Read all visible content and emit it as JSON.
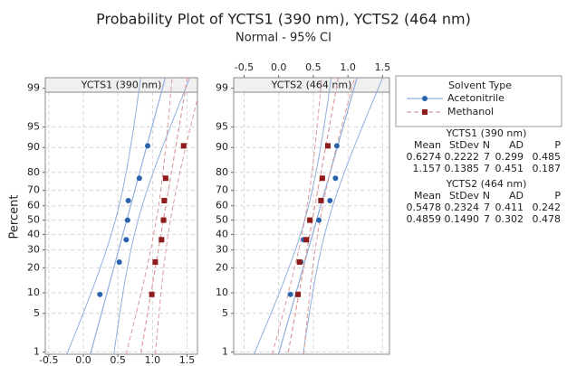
{
  "figure": {
    "title": "Probability Plot of YCTS1 (390 nm), YCTS2 (464 nm)",
    "subtitle": "Normal - 95% CI",
    "y_label": "Percent"
  },
  "legend": {
    "title": "Solvent Type",
    "position": "right"
  },
  "chart_data": [
    {
      "type": "probability",
      "title": "YCTS1 (390 nm)",
      "yscale": "normal",
      "grid": true,
      "xaxis_position": "bottom",
      "xlim": [
        -0.55,
        1.65
      ],
      "xticks": [
        -0.5,
        {
          "value": 0,
          "label": "0.0"
        },
        0.5,
        {
          "value": 1,
          "label": "1.0"
        },
        1.5
      ],
      "ylim": [
        0.9,
        99.4
      ],
      "yticks": [
        1,
        5,
        10,
        20,
        30,
        40,
        50,
        60,
        70,
        80,
        90,
        95,
        99
      ],
      "series": [
        {
          "name": "Acetonitrile",
          "color": "#2a62ad",
          "line_color": "#8fb0dc",
          "line_style": "solid",
          "x": [
            0.24,
            0.52,
            0.62,
            0.64,
            0.65,
            0.81,
            0.93
          ],
          "y": [
            9.5,
            23,
            36.5,
            50,
            63.5,
            77,
            90.5
          ]
        },
        {
          "name": "Methanol",
          "color": "#8e1c1c",
          "line_color": "#dc9a9a",
          "line_style": "dashed",
          "x": [
            0.99,
            1.04,
            1.13,
            1.16,
            1.17,
            1.19,
            1.45
          ],
          "y": [
            9.5,
            23,
            36.5,
            50,
            63.5,
            77,
            90.5
          ]
        }
      ]
    },
    {
      "type": "probability",
      "title": "YCTS2 (464 nm)",
      "yscale": "normal",
      "grid": true,
      "xaxis_position": "top",
      "xlim": [
        -0.65,
        1.6
      ],
      "xticks": [
        -0.5,
        {
          "value": 0,
          "label": "0.0"
        },
        0.5,
        {
          "value": 1,
          "label": "1.0"
        },
        1.5
      ],
      "ylim": [
        0.9,
        99.4
      ],
      "yticks": [
        1,
        5,
        10,
        20,
        30,
        40,
        50,
        60,
        70,
        80,
        90,
        95,
        99
      ],
      "series": [
        {
          "name": "Acetonitrile",
          "color": "#2a62ad",
          "line_color": "#8fb0dc",
          "line_style": "solid",
          "x": [
            0.17,
            0.32,
            0.36,
            0.58,
            0.74,
            0.82,
            0.84
          ],
          "y": [
            9.5,
            23,
            36.5,
            50,
            63.5,
            77,
            90.5
          ]
        },
        {
          "name": "Methanol",
          "color": "#8e1c1c",
          "line_color": "#dc9a9a",
          "line_style": "dashed",
          "x": [
            0.28,
            0.3,
            0.4,
            0.45,
            0.61,
            0.63,
            0.71
          ],
          "y": [
            9.5,
            23,
            36.5,
            50,
            63.5,
            77,
            90.5
          ]
        }
      ]
    }
  ],
  "stats": [
    {
      "title": "YCTS1 (390 nm)",
      "columns": [
        "Mean",
        "StDev",
        "N",
        "AD",
        "P"
      ],
      "rows": [
        [
          "0.6274",
          "0.2222",
          "7",
          "0.299",
          "0.485"
        ],
        [
          "1.157",
          "0.1385",
          "7",
          "0.451",
          "0.187"
        ]
      ]
    },
    {
      "title": "YCTS2 (464 nm)",
      "columns": [
        "Mean",
        "StDev",
        "N",
        "AD",
        "P"
      ],
      "rows": [
        [
          "0.5478",
          "0.2324",
          "7",
          "0.411",
          "0.242"
        ],
        [
          "0.4859",
          "0.1490",
          "7",
          "0.302",
          "0.478"
        ]
      ]
    }
  ]
}
